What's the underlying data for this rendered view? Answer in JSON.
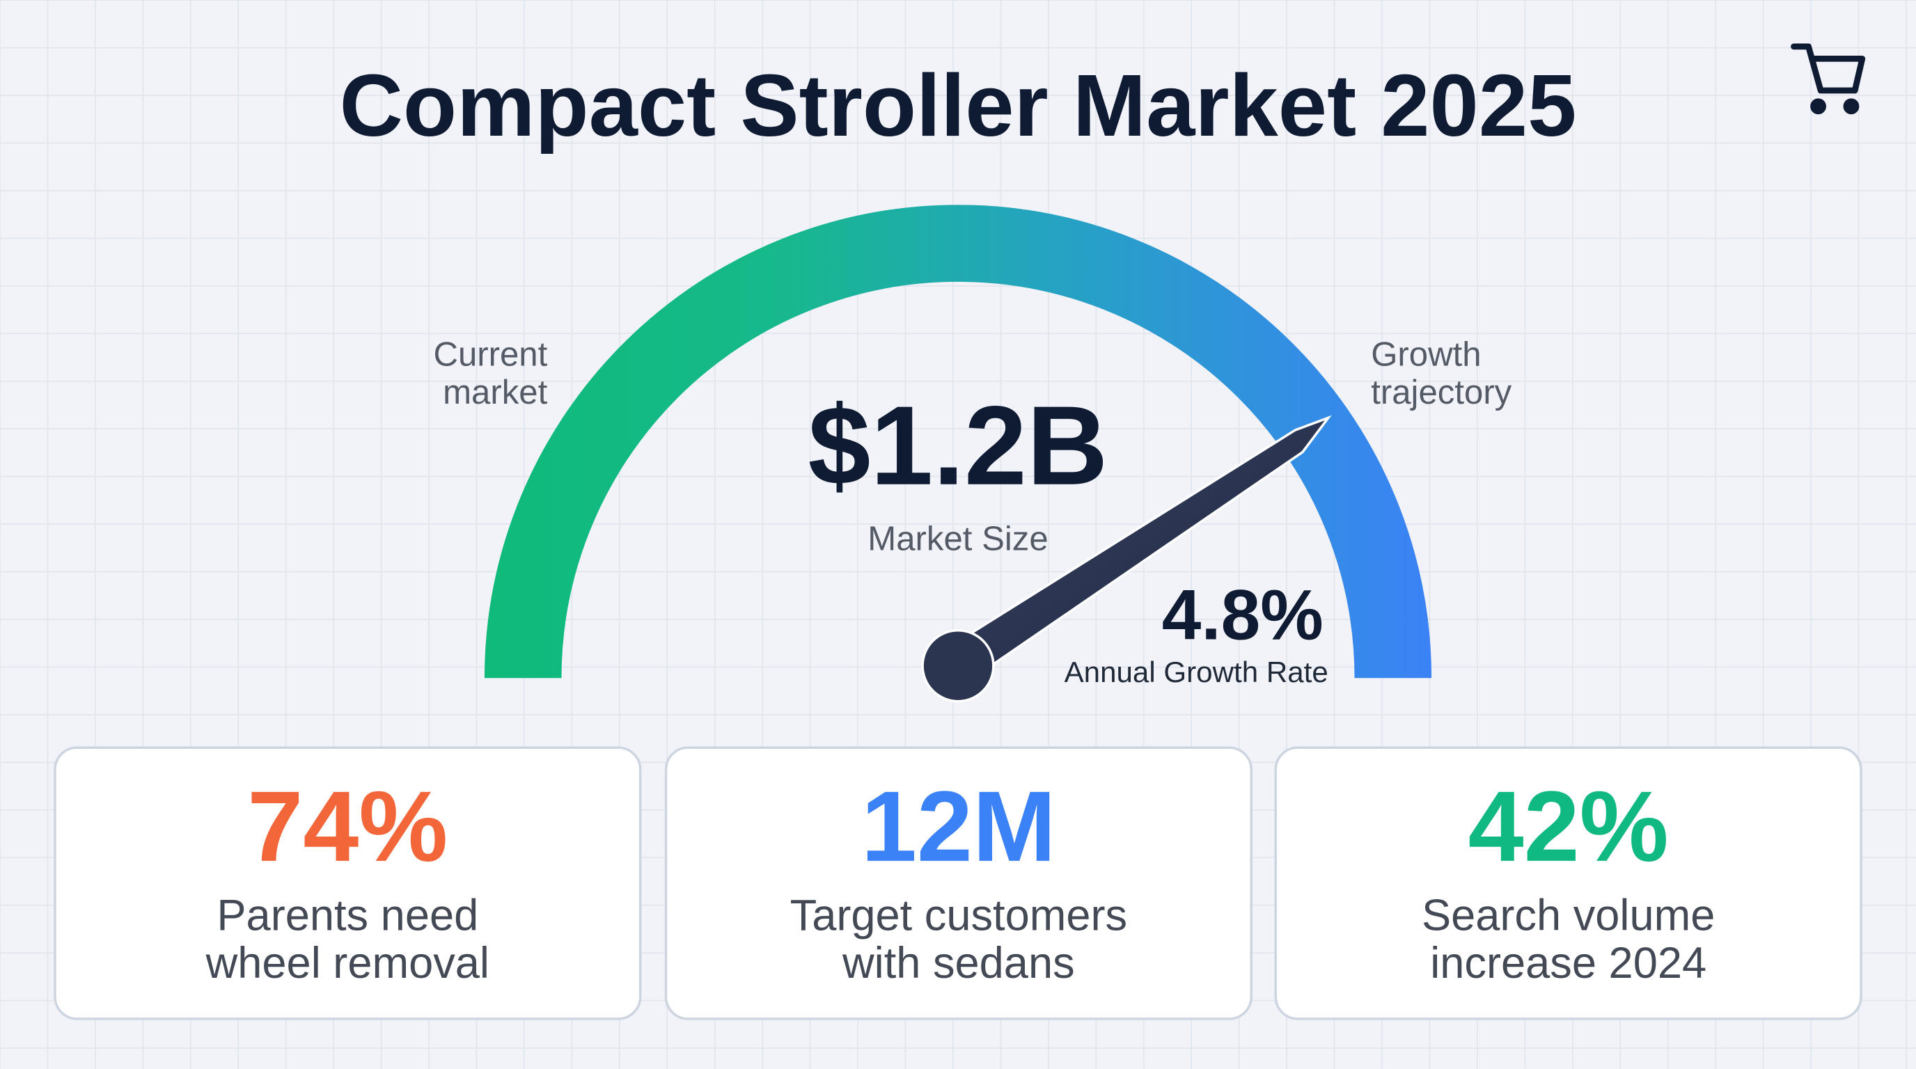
{
  "header": {
    "title": "Compact Stroller Market 2025"
  },
  "gauge": {
    "left_label": [
      "Current",
      "market"
    ],
    "right_label": [
      "Growth",
      "trajectory"
    ],
    "main_value": "$1.2B",
    "main_caption": "Market Size",
    "needle_value": "4.8%",
    "needle_caption": "Annual Growth Rate"
  },
  "cards": [
    {
      "value": "74%",
      "lines": [
        "Parents need",
        "wheel removal"
      ],
      "color": "#f2663a"
    },
    {
      "value": "12M",
      "lines": [
        "Target customers",
        "with sedans"
      ],
      "color": "#3b82f6"
    },
    {
      "value": "42%",
      "lines": [
        "Search volume",
        "increase 2024"
      ],
      "color": "#10b981"
    }
  ]
}
